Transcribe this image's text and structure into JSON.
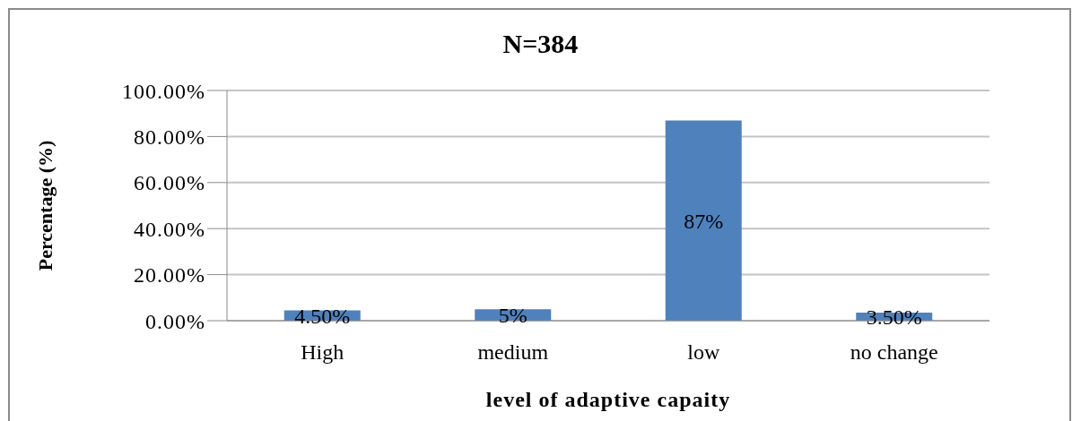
{
  "chart_data": {
    "type": "bar",
    "title": "N=384",
    "xlabel": "level of adaptive capaity",
    "ylabel": "Percentage (%)",
    "categories": [
      "High",
      "medium",
      "low",
      "no change"
    ],
    "values": [
      4.5,
      5,
      87,
      3.5
    ],
    "color": "#4f81bd",
    "value_labels": [
      "4.50%",
      "5%",
      "87%",
      "3.50%"
    ],
    "ylim": [
      0,
      100
    ],
    "yticks": [
      {
        "value": 0,
        "label": "0.00%"
      },
      {
        "value": 20,
        "label": "20.00%"
      },
      {
        "value": 40,
        "label": "40.00%"
      },
      {
        "value": 60,
        "label": "60.00%"
      },
      {
        "value": 80,
        "label": "80.00%"
      },
      {
        "value": 100,
        "label": "100.00%"
      }
    ],
    "grid": "y"
  }
}
